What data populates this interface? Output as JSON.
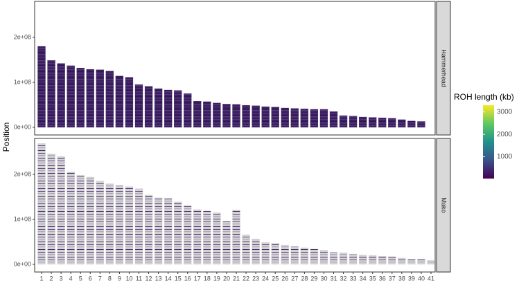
{
  "chart_data": {
    "type": "bar",
    "y_label": "Position",
    "categories": [
      "1",
      "2",
      "3",
      "4",
      "5",
      "6",
      "7",
      "8",
      "9",
      "10",
      "11",
      "12",
      "13",
      "14",
      "15",
      "16",
      "17",
      "18",
      "19",
      "20",
      "21",
      "22",
      "23",
      "24",
      "25",
      "26",
      "27",
      "28",
      "29",
      "30",
      "31",
      "32",
      "33",
      "34",
      "35",
      "36",
      "37",
      "38",
      "39",
      "40",
      "41"
    ],
    "series": [
      {
        "name": "Hammerhead",
        "color": "#3b1f5e",
        "values": [
          180000000,
          149000000,
          142000000,
          137000000,
          132000000,
          129000000,
          128000000,
          125000000,
          114000000,
          111000000,
          95000000,
          91000000,
          86000000,
          83000000,
          82000000,
          75000000,
          58000000,
          57000000,
          54000000,
          52000000,
          51000000,
          49000000,
          48000000,
          46000000,
          45000000,
          43000000,
          42000000,
          41000000,
          40000000,
          40000000,
          35000000,
          26000000,
          25000000,
          23000000,
          22000000,
          21000000,
          20000000,
          17000000,
          14000000,
          13000000,
          null
        ]
      },
      {
        "name": "Mako",
        "color": "#d3d3d3",
        "values": [
          269000000,
          246000000,
          240000000,
          206000000,
          198000000,
          194000000,
          185000000,
          179000000,
          176000000,
          173000000,
          168000000,
          154000000,
          148000000,
          147000000,
          139000000,
          131000000,
          122000000,
          119000000,
          115000000,
          96000000,
          121000000,
          66000000,
          56000000,
          49000000,
          47000000,
          43000000,
          40000000,
          37000000,
          34000000,
          32000000,
          27000000,
          26000000,
          23000000,
          21000000,
          20000000,
          18000000,
          17000000,
          14000000,
          12000000,
          12000000,
          9000000
        ]
      }
    ],
    "ylim": [
      -17000000,
      280000000
    ],
    "yticks": [
      {
        "value": 0,
        "label": "0e+00"
      },
      {
        "value": 100000000,
        "label": "1e+08"
      },
      {
        "value": 200000000,
        "label": "2e+08"
      }
    ],
    "colorbar": {
      "title": "ROH length (kb)",
      "lim": [
        30,
        3300
      ],
      "ticks": [
        1000,
        2000,
        3000
      ],
      "colors": [
        "#440154",
        "#3b528b",
        "#21918c",
        "#5ec962",
        "#fde725"
      ]
    }
  }
}
